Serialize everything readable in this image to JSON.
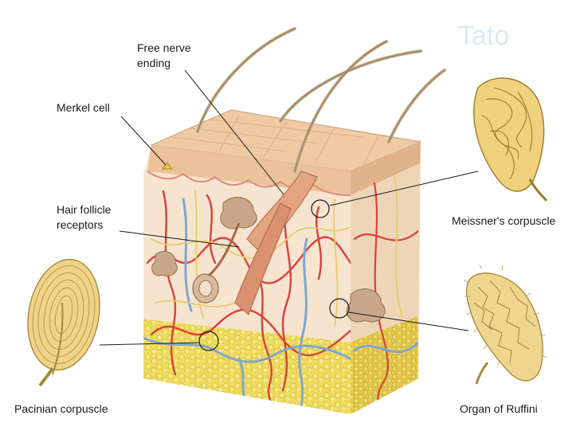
{
  "watermark": "Tato",
  "labels": {
    "free_nerve_ending": [
      "Free nerve",
      "ending"
    ],
    "merkel_cell": "Merkel cell",
    "hair_follicle_receptors": [
      "Hair follicle",
      "receptors"
    ],
    "meissners_corpuscle": "Meissner's corpuscle",
    "pacinian_corpuscle": "Pacinian corpuscle",
    "organ_of_ruffini": "Organ of Ruffini"
  },
  "colors": {
    "epidermis": "#ecc9a4",
    "dermis": "#f6e3cf",
    "fat": "#f0da5a",
    "artery": "#d9413a",
    "vein": "#7ea6cf",
    "nerve": "#e8d070",
    "hair": "#c9b08e",
    "corpuscle": "#f2d98e"
  }
}
